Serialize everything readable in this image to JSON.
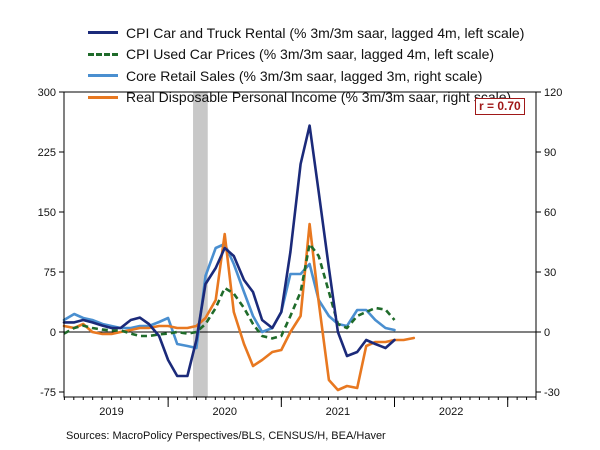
{
  "chart_data": {
    "type": "line",
    "title": "",
    "left_axis": {
      "min": -75,
      "max": 300,
      "ticks": [
        -75,
        0,
        75,
        150,
        225,
        300
      ]
    },
    "right_axis": {
      "min": -30,
      "max": 120,
      "ticks": [
        -30,
        0,
        30,
        60,
        90,
        120
      ]
    },
    "x_axis": {
      "start": 2018.58,
      "end": 2022.75,
      "labels": [
        {
          "text": "2019",
          "x": 2019.0
        },
        {
          "text": "2020",
          "x": 2020.0
        },
        {
          "text": "2021",
          "x": 2021.0
        },
        {
          "text": "2022",
          "x": 2022.0
        }
      ],
      "year_boundaries": [
        2019.5,
        2020.5,
        2021.5,
        2022.5
      ]
    },
    "recession_band": [
      2019.72,
      2019.85
    ],
    "zero_line": true,
    "annotation": "r = 0.70",
    "source": "Sources:  MacroPolicy Perspectives/BLS, CENSUS/H, BEA/Haver",
    "series": [
      {
        "name": "CPI Car and Truck Rental (% 3m/3m saar, lagged 4m, left scale)",
        "axis": "left",
        "color": "#1b2a7a",
        "dash": "none",
        "points": [
          [
            2018.58,
            12
          ],
          [
            2018.67,
            12
          ],
          [
            2018.75,
            15
          ],
          [
            2018.83,
            12
          ],
          [
            2018.92,
            8
          ],
          [
            2019.0,
            5
          ],
          [
            2019.08,
            5
          ],
          [
            2019.17,
            15
          ],
          [
            2019.25,
            18
          ],
          [
            2019.33,
            10
          ],
          [
            2019.42,
            -5
          ],
          [
            2019.5,
            -35
          ],
          [
            2019.58,
            -55
          ],
          [
            2019.67,
            -55
          ],
          [
            2019.75,
            -10
          ],
          [
            2019.83,
            60
          ],
          [
            2019.92,
            80
          ],
          [
            2020.0,
            105
          ],
          [
            2020.08,
            95
          ],
          [
            2020.17,
            65
          ],
          [
            2020.25,
            50
          ],
          [
            2020.33,
            15
          ],
          [
            2020.42,
            5
          ],
          [
            2020.5,
            25
          ],
          [
            2020.58,
            100
          ],
          [
            2020.67,
            210
          ],
          [
            2020.75,
            258
          ],
          [
            2020.83,
            175
          ],
          [
            2020.92,
            80
          ],
          [
            2021.0,
            0
          ],
          [
            2021.08,
            -30
          ],
          [
            2021.17,
            -25
          ],
          [
            2021.25,
            -10
          ],
          [
            2021.33,
            -15
          ],
          [
            2021.42,
            -20
          ],
          [
            2021.5,
            -10
          ]
        ]
      },
      {
        "name": "CPI Used Car Prices (% 3m/3m saar, lagged 4m, left scale)",
        "axis": "left",
        "color": "#1f6b2a",
        "dash": "6,4",
        "points": [
          [
            2018.58,
            -2
          ],
          [
            2018.67,
            5
          ],
          [
            2018.75,
            8
          ],
          [
            2018.83,
            5
          ],
          [
            2018.92,
            3
          ],
          [
            2019.0,
            2
          ],
          [
            2019.08,
            2
          ],
          [
            2019.17,
            -2
          ],
          [
            2019.25,
            -5
          ],
          [
            2019.33,
            -5
          ],
          [
            2019.42,
            -3
          ],
          [
            2019.5,
            -2
          ],
          [
            2019.58,
            0
          ],
          [
            2019.67,
            -2
          ],
          [
            2019.75,
            0
          ],
          [
            2019.83,
            10
          ],
          [
            2019.92,
            30
          ],
          [
            2020.0,
            55
          ],
          [
            2020.08,
            48
          ],
          [
            2020.17,
            30
          ],
          [
            2020.25,
            10
          ],
          [
            2020.33,
            -5
          ],
          [
            2020.42,
            -8
          ],
          [
            2020.5,
            -5
          ],
          [
            2020.58,
            20
          ],
          [
            2020.67,
            50
          ],
          [
            2020.75,
            110
          ],
          [
            2020.83,
            95
          ],
          [
            2020.92,
            50
          ],
          [
            2021.0,
            10
          ],
          [
            2021.08,
            5
          ],
          [
            2021.17,
            20
          ],
          [
            2021.25,
            25
          ],
          [
            2021.33,
            30
          ],
          [
            2021.42,
            28
          ],
          [
            2021.5,
            15
          ]
        ]
      },
      {
        "name": "Core Retail Sales (% 3m/3m saar, lagged 3m, right scale)",
        "axis": "right",
        "color": "#4a8fd0",
        "dash": "none",
        "points": [
          [
            2018.58,
            6
          ],
          [
            2018.67,
            9
          ],
          [
            2018.75,
            7
          ],
          [
            2018.83,
            6
          ],
          [
            2018.92,
            4
          ],
          [
            2019.0,
            3
          ],
          [
            2019.08,
            2
          ],
          [
            2019.17,
            2
          ],
          [
            2019.25,
            3
          ],
          [
            2019.33,
            3
          ],
          [
            2019.42,
            5
          ],
          [
            2019.5,
            7
          ],
          [
            2019.58,
            -6
          ],
          [
            2019.67,
            -7
          ],
          [
            2019.75,
            -8
          ],
          [
            2019.83,
            28
          ],
          [
            2019.92,
            42
          ],
          [
            2020.0,
            44
          ],
          [
            2020.08,
            34
          ],
          [
            2020.17,
            20
          ],
          [
            2020.25,
            8
          ],
          [
            2020.33,
            0
          ],
          [
            2020.42,
            2
          ],
          [
            2020.5,
            10
          ],
          [
            2020.58,
            29
          ],
          [
            2020.67,
            29
          ],
          [
            2020.75,
            34
          ],
          [
            2020.83,
            16
          ],
          [
            2020.92,
            8
          ],
          [
            2021.0,
            4
          ],
          [
            2021.08,
            3
          ],
          [
            2021.17,
            11
          ],
          [
            2021.25,
            11
          ],
          [
            2021.33,
            6
          ],
          [
            2021.42,
            2
          ],
          [
            2021.5,
            1
          ]
        ]
      },
      {
        "name": "Real Disposable Personal Income (% 3m/3m saar, right scale)",
        "axis": "right",
        "color": "#e87820",
        "dash": "none",
        "points": [
          [
            2018.58,
            3
          ],
          [
            2018.67,
            2
          ],
          [
            2018.75,
            4
          ],
          [
            2018.83,
            0
          ],
          [
            2018.92,
            -1
          ],
          [
            2019.0,
            -1
          ],
          [
            2019.08,
            0
          ],
          [
            2019.17,
            1
          ],
          [
            2019.25,
            2
          ],
          [
            2019.33,
            2
          ],
          [
            2019.42,
            3
          ],
          [
            2019.5,
            3
          ],
          [
            2019.58,
            2
          ],
          [
            2019.67,
            2
          ],
          [
            2019.75,
            3
          ],
          [
            2019.83,
            7
          ],
          [
            2019.92,
            16
          ],
          [
            2020.0,
            49
          ],
          [
            2020.08,
            10
          ],
          [
            2020.17,
            -6
          ],
          [
            2020.25,
            -17
          ],
          [
            2020.33,
            -14
          ],
          [
            2020.42,
            -10
          ],
          [
            2020.5,
            -9
          ],
          [
            2020.58,
            0
          ],
          [
            2020.67,
            8
          ],
          [
            2020.75,
            54
          ],
          [
            2020.83,
            15
          ],
          [
            2020.92,
            -24
          ],
          [
            2021.0,
            -29
          ],
          [
            2021.08,
            -27
          ],
          [
            2021.17,
            -28
          ],
          [
            2021.25,
            -7
          ],
          [
            2021.33,
            -5
          ],
          [
            2021.42,
            -5
          ],
          [
            2021.5,
            -4
          ],
          [
            2021.58,
            -4
          ],
          [
            2021.67,
            -3
          ]
        ]
      }
    ]
  }
}
